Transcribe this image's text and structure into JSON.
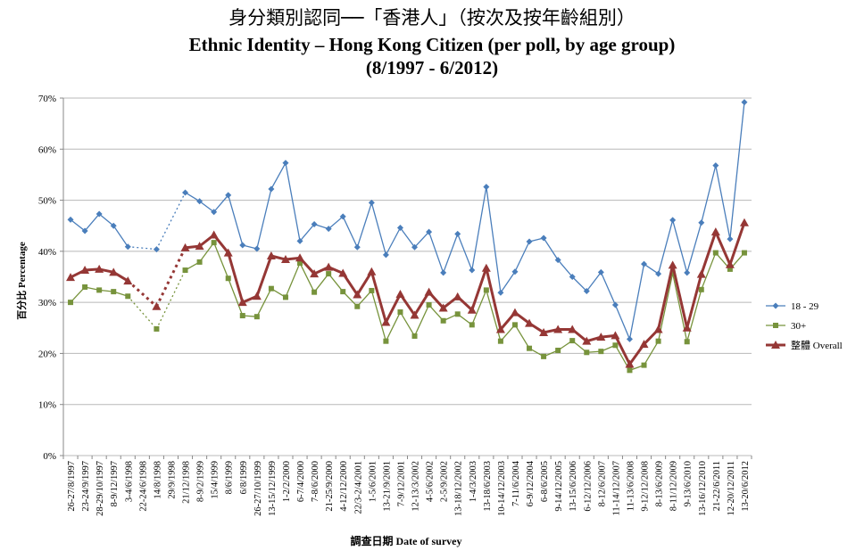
{
  "chart_data": {
    "type": "line",
    "title": "身分類別認同──「香港人」（按次及按年齡組別）",
    "subtitle": "Ethnic Identity – Hong Kong Citizen (per poll, by age group)",
    "subtitle2": "(8/1997 - 6/2012)",
    "xlabel": "調查日期 Date of survey",
    "ylabel": "百分比 Percentage",
    "ylim": [
      0,
      70
    ],
    "yticks": [
      "0%",
      "10%",
      "20%",
      "30%",
      "40%",
      "50%",
      "60%",
      "70%"
    ],
    "legend_position": "right",
    "grid": true,
    "categories": [
      "26-27/8/1997",
      "23-24/9/1997",
      "28-29/10/1997",
      "8-9/12/1997",
      "3-4/6/1998",
      "22-24/6/1998",
      "14/8/1998",
      "29/9/1998",
      "21/12/1998",
      "8-9/2/1999",
      "15/4/1999",
      "8/6/1999",
      "6/8/1999",
      "26-27/10/1999",
      "13-15/12/1999",
      "1-2/2/2000",
      "6-7/4/2000",
      "7-8/6/2000",
      "21-25/9/2000",
      "4-12/12/2000",
      "22/3-2/4/2001",
      "1-5/6/2001",
      "13-21/9/2001",
      "7-9/12/2001",
      "12-13/3/2002",
      "4-5/6/2002",
      "2-5/9/2002",
      "13-18/12/2002",
      "1-4/3/2003",
      "13-18/6/2003",
      "10-14/12/2003",
      "7-11/6/2004",
      "6-9/12/2004",
      "6-8/6/2005",
      "9-14/12/2005",
      "13-15/6/2006",
      "6-12/12/2006",
      "8-12/6/2007",
      "11-14/12/2007",
      "11-13/6/2008",
      "9-12/12/2008",
      "8-13/6/2009",
      "8-11/12/2009",
      "9-13/6/2010",
      "13-16/12/2010",
      "21-22/6/2011",
      "12-20/12/2011",
      "13-20/6/2012"
    ],
    "series": [
      {
        "name": "18 - 29",
        "color": "#4a7ebb",
        "marker": "diamond",
        "values": [
          46.2,
          44.0,
          47.3,
          45.0,
          40.9,
          null,
          40.4,
          null,
          51.5,
          49.8,
          47.7,
          51.0,
          41.2,
          40.5,
          52.2,
          57.3,
          42.0,
          45.3,
          44.4,
          46.8,
          40.8,
          49.5,
          39.3,
          44.6,
          40.8,
          43.8,
          35.8,
          43.4,
          36.3,
          52.6,
          31.9,
          36.0,
          41.9,
          42.6,
          38.3,
          35.0,
          32.2,
          35.9,
          29.5,
          22.8,
          37.5,
          35.6,
          46.1,
          35.8,
          45.6,
          56.8,
          42.4,
          69.2
        ]
      },
      {
        "name": "30+",
        "color": "#77933c",
        "marker": "square",
        "values": [
          30.0,
          33.0,
          32.4,
          32.1,
          31.2,
          null,
          24.8,
          null,
          36.3,
          37.9,
          41.7,
          34.7,
          27.4,
          27.2,
          32.7,
          31.0,
          37.7,
          32.0,
          35.6,
          32.1,
          29.2,
          32.3,
          22.4,
          28.1,
          23.4,
          29.5,
          26.4,
          27.7,
          25.6,
          32.4,
          22.4,
          25.6,
          21.0,
          19.4,
          20.6,
          22.5,
          20.2,
          20.4,
          21.6,
          16.7,
          17.7,
          22.4,
          35.7,
          22.3,
          32.5,
          39.7,
          36.5,
          39.7
        ]
      },
      {
        "name": "整體 Overall",
        "color": "#953735",
        "marker": "triangle",
        "values": [
          34.9,
          36.3,
          36.5,
          35.9,
          34.2,
          null,
          29.2,
          null,
          40.7,
          41.0,
          43.2,
          39.7,
          30.0,
          31.2,
          39.1,
          38.4,
          38.7,
          35.6,
          36.9,
          35.7,
          31.5,
          36.0,
          26.1,
          31.6,
          27.5,
          32.0,
          28.9,
          31.1,
          28.5,
          36.7,
          24.7,
          28.0,
          25.9,
          24.1,
          24.7,
          24.7,
          22.4,
          23.2,
          23.5,
          17.9,
          21.8,
          24.7,
          37.3,
          25.0,
          35.5,
          43.8,
          37.4,
          45.6
        ]
      }
    ]
  }
}
